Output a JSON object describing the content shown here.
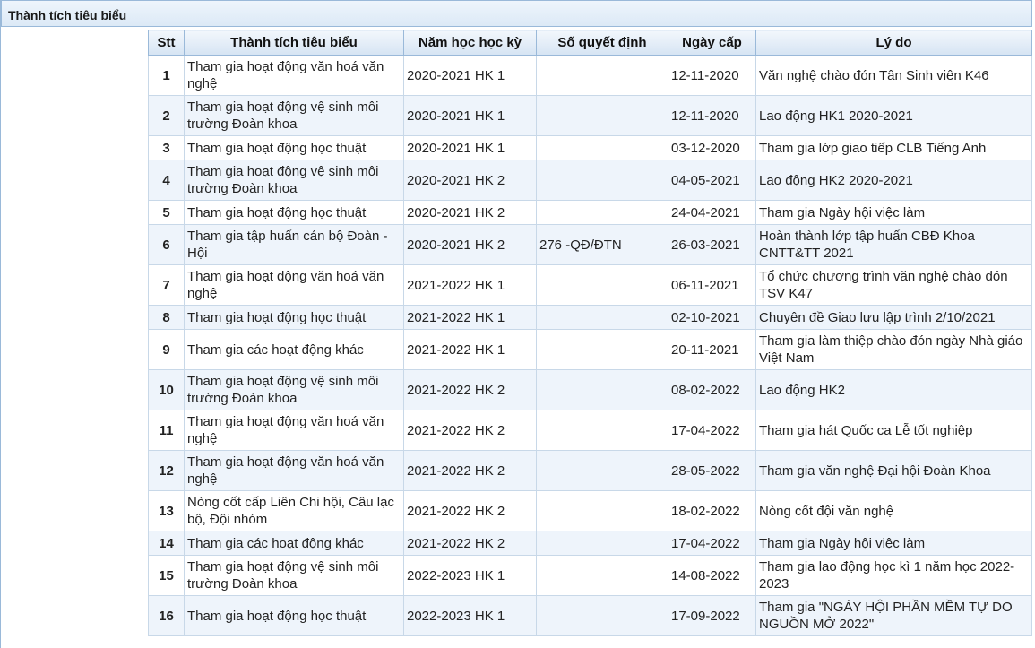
{
  "section": {
    "title": "Thành tích tiêu biểu"
  },
  "columns": [
    "Stt",
    "Thành tích tiêu biểu",
    "Năm học học kỳ",
    "Số quyết định",
    "Ngày cấp",
    "Lý do"
  ],
  "rows": [
    {
      "stt": "1",
      "achievement": "Tham gia hoạt động văn hoá văn nghệ",
      "term": "2020-2021 HK 1",
      "decision": "",
      "date": "12-11-2020",
      "reason": "Văn nghệ chào đón Tân Sinh viên K46"
    },
    {
      "stt": "2",
      "achievement": "Tham gia hoạt động vệ sinh môi trường Đoàn khoa",
      "term": "2020-2021 HK 1",
      "decision": "",
      "date": "12-11-2020",
      "reason": "Lao động HK1 2020-2021"
    },
    {
      "stt": "3",
      "achievement": "Tham gia hoạt động học thuật",
      "term": "2020-2021 HK 1",
      "decision": "",
      "date": "03-12-2020",
      "reason": "Tham gia lớp giao tiếp CLB Tiếng Anh"
    },
    {
      "stt": "4",
      "achievement": "Tham gia hoạt động vệ sinh môi trường Đoàn khoa",
      "term": "2020-2021 HK 2",
      "decision": "",
      "date": "04-05-2021",
      "reason": "Lao động HK2 2020-2021"
    },
    {
      "stt": "5",
      "achievement": "Tham gia hoạt động học thuật",
      "term": "2020-2021 HK 2",
      "decision": "",
      "date": "24-04-2021",
      "reason": "Tham gia Ngày hội việc làm"
    },
    {
      "stt": "6",
      "achievement": "Tham gia tập huấn cán bộ Đoàn - Hội",
      "term": "2020-2021 HK 2",
      "decision": "276 -QĐ/ĐTN",
      "date": "26-03-2021",
      "reason": "Hoàn thành lớp tập huấn CBĐ Khoa CNTT&TT 2021"
    },
    {
      "stt": "7",
      "achievement": "Tham gia hoạt động văn hoá văn nghệ",
      "term": "2021-2022 HK 1",
      "decision": "",
      "date": "06-11-2021",
      "reason": "Tổ chức chương trình văn nghệ chào đón TSV K47"
    },
    {
      "stt": "8",
      "achievement": "Tham gia hoạt động học thuật",
      "term": "2021-2022 HK 1",
      "decision": "",
      "date": "02-10-2021",
      "reason": "Chuyên đề Giao lưu lập trình 2/10/2021"
    },
    {
      "stt": "9",
      "achievement": "Tham gia các hoạt động khác",
      "term": "2021-2022 HK 1",
      "decision": "",
      "date": "20-11-2021",
      "reason": "Tham gia làm thiệp chào đón ngày Nhà giáo Việt Nam"
    },
    {
      "stt": "10",
      "achievement": "Tham gia hoạt động vệ sinh môi trường Đoàn khoa",
      "term": "2021-2022 HK 2",
      "decision": "",
      "date": "08-02-2022",
      "reason": "Lao động HK2"
    },
    {
      "stt": "11",
      "achievement": "Tham gia hoạt động văn hoá văn nghệ",
      "term": "2021-2022 HK 2",
      "decision": "",
      "date": "17-04-2022",
      "reason": "Tham gia hát Quốc ca Lễ tốt nghiệp"
    },
    {
      "stt": "12",
      "achievement": "Tham gia hoạt động văn hoá văn nghệ",
      "term": "2021-2022 HK 2",
      "decision": "",
      "date": "28-05-2022",
      "reason": "Tham gia văn nghệ Đại hội Đoàn Khoa"
    },
    {
      "stt": "13",
      "achievement": "Nòng cốt cấp Liên Chi hội, Câu lạc bộ, Đội nhóm",
      "term": "2021-2022 HK 2",
      "decision": "",
      "date": "18-02-2022",
      "reason": "Nòng cốt đội văn nghệ"
    },
    {
      "stt": "14",
      "achievement": "Tham gia các hoạt động khác",
      "term": "2021-2022 HK 2",
      "decision": "",
      "date": "17-04-2022",
      "reason": "Tham gia Ngày hội việc làm"
    },
    {
      "stt": "15",
      "achievement": "Tham gia hoạt động vệ sinh môi trường Đoàn khoa",
      "term": "2022-2023 HK 1",
      "decision": "",
      "date": "14-08-2022",
      "reason": "Tham gia lao động học kì 1 năm học 2022-2023"
    },
    {
      "stt": "16",
      "achievement": "Tham gia hoạt động học thuật",
      "term": "2022-2023 HK 1",
      "decision": "",
      "date": "17-09-2022",
      "reason": "Tham gia \"NGÀY HỘI PHẦN MỀM TỰ DO NGUỒN MỞ 2022\""
    }
  ]
}
